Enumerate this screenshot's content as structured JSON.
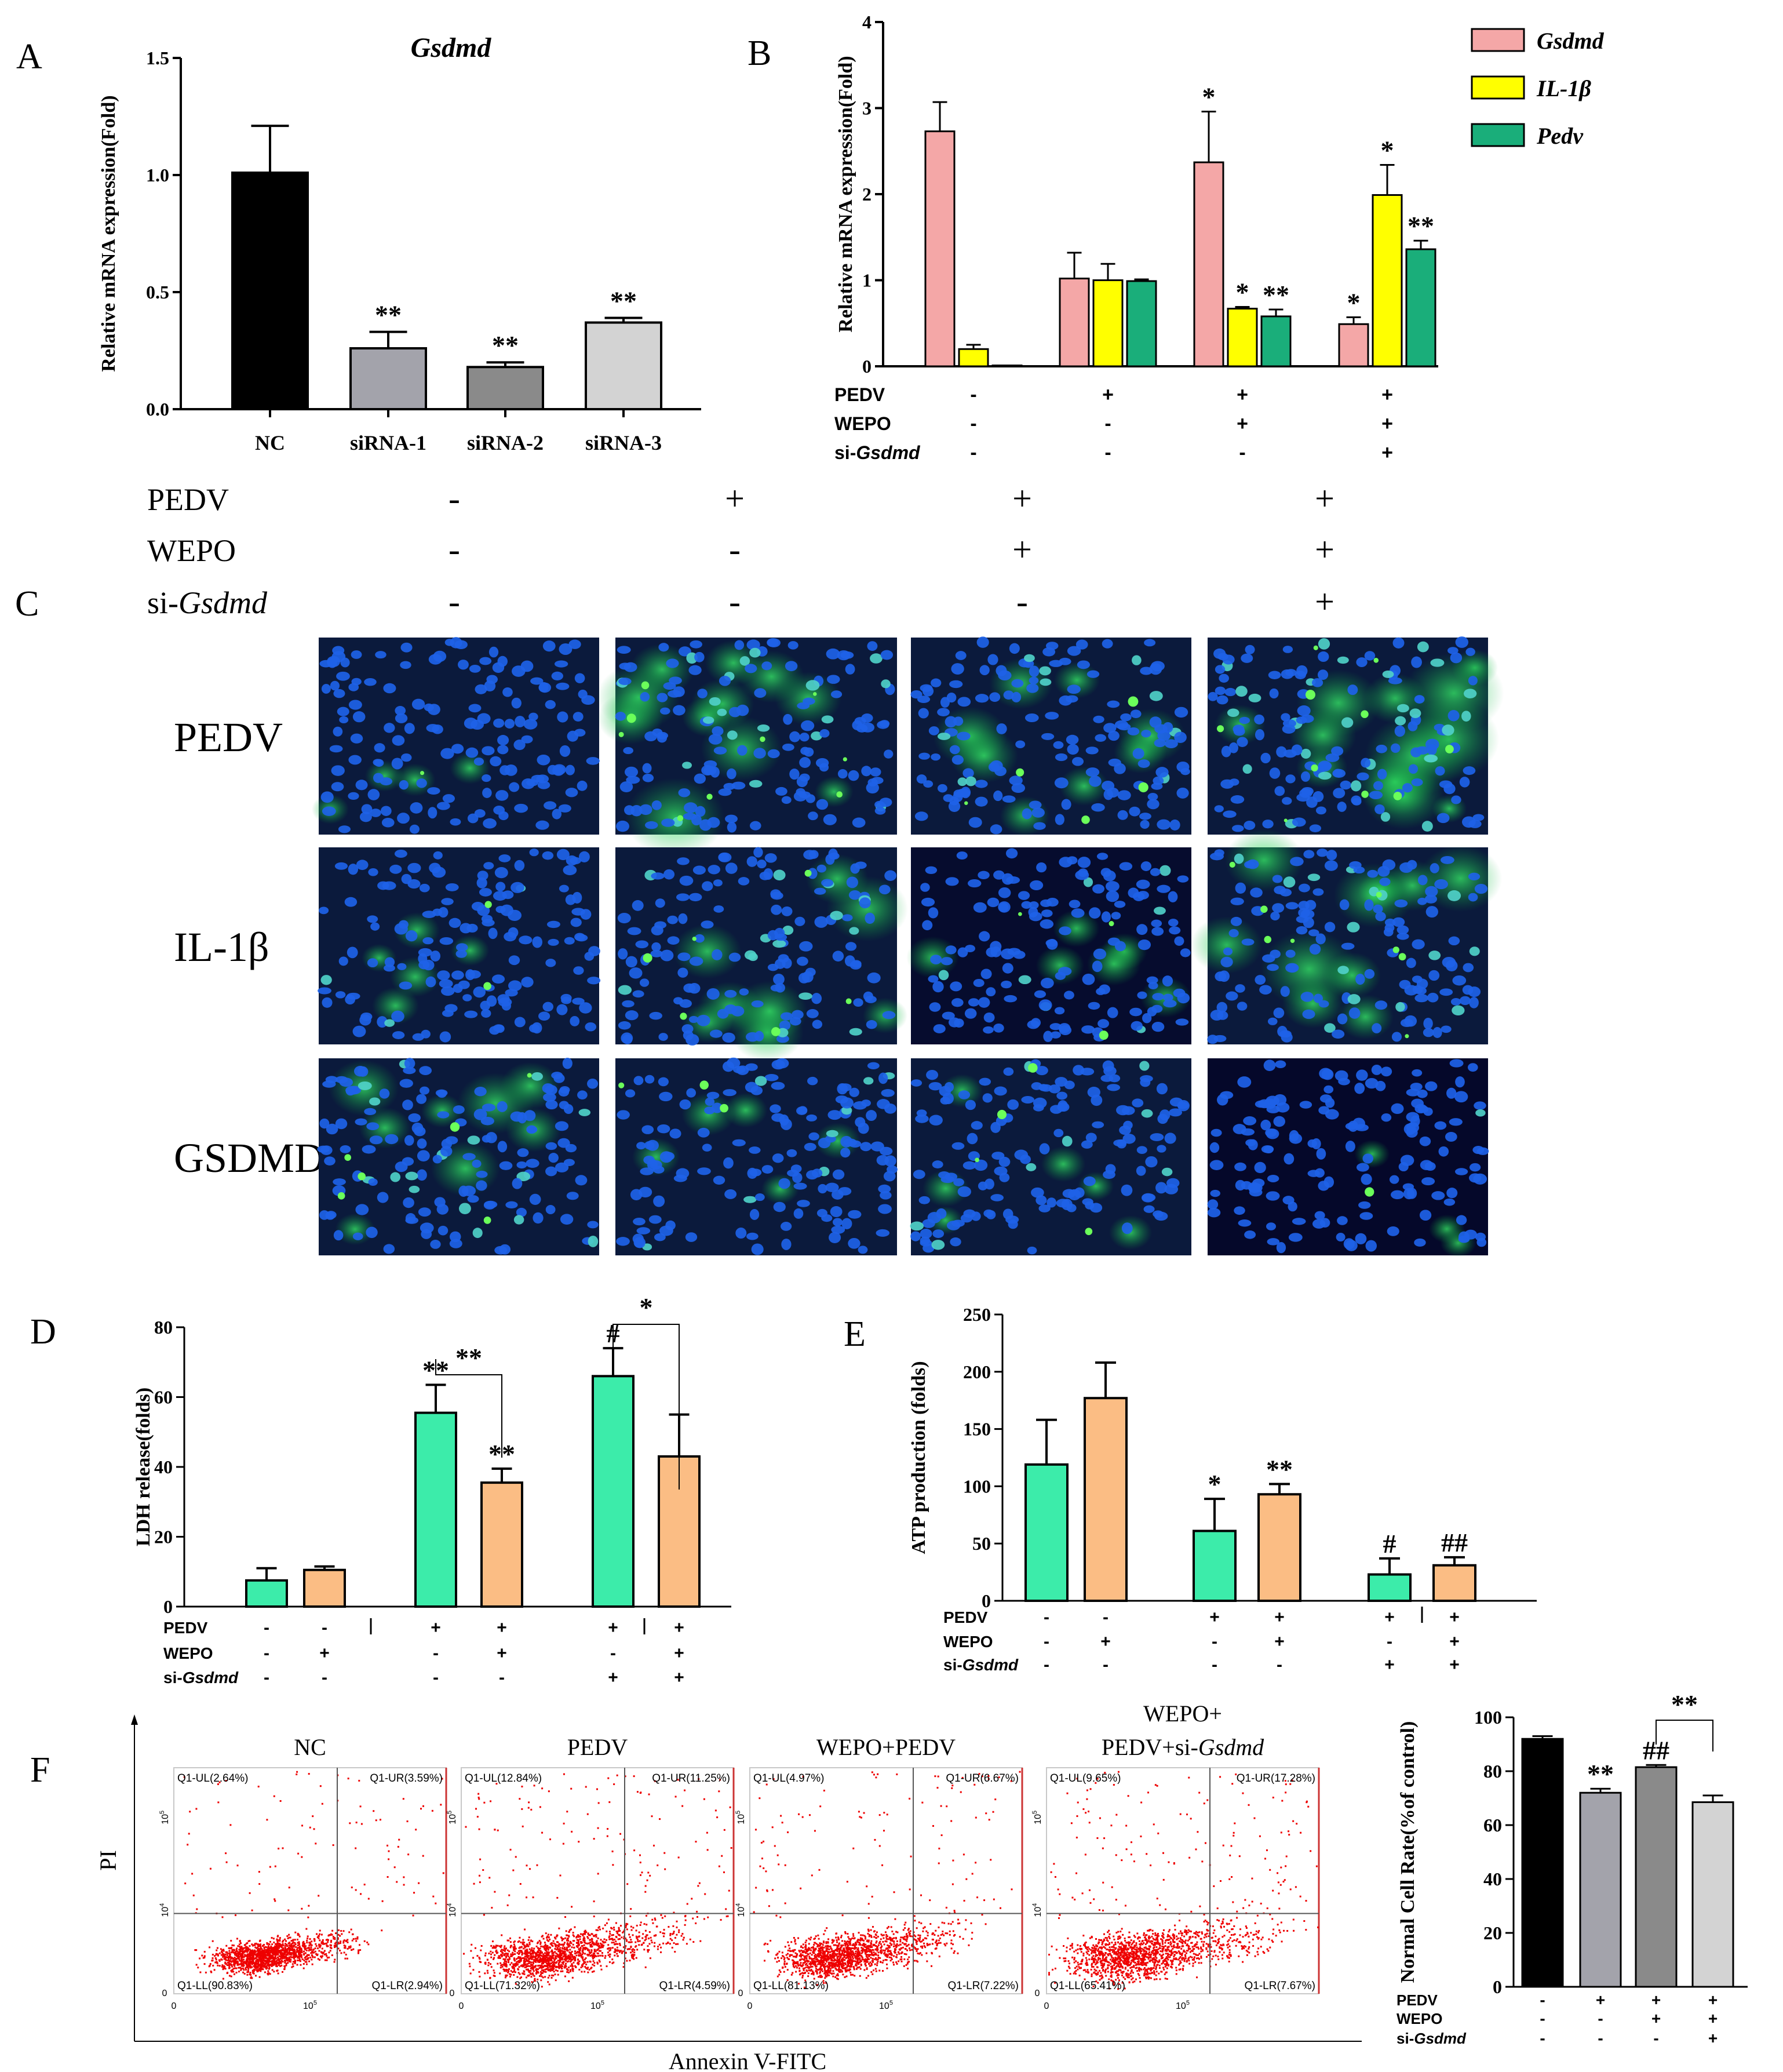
{
  "panels": {
    "A": "A",
    "B": "B",
    "C": "C",
    "D": "D",
    "E": "E",
    "F": "F"
  },
  "colors": {
    "gsdmd": "#f4a7a7",
    "il1b": "#ffff00",
    "pedv": "#1aae7a",
    "black": "#000000",
    "grey1": "#a3a3ab",
    "grey2": "#8a8a8a",
    "grey3": "#d3d3d3",
    "green_d": "#3cecaa",
    "orange_d": "#fbbd84",
    "red_dot": "#ee0000"
  },
  "chart_data": [
    {
      "id": "A",
      "type": "bar",
      "title": "Gsdmd",
      "ylabel": "Relative mRNA expression(Fold)",
      "xlabel": "",
      "ylim": [
        0,
        1.5
      ],
      "yticks": [
        "0.0",
        "0.5",
        "1.0",
        "1.5"
      ],
      "categories": [
        "NC",
        "siRNA-1",
        "siRNA-2",
        "siRNA-3"
      ],
      "values": [
        1.01,
        0.26,
        0.18,
        0.37
      ],
      "errors": [
        0.2,
        0.07,
        0.02,
        0.02
      ],
      "colors": [
        "black",
        "grey1",
        "grey2",
        "grey3"
      ],
      "significance": [
        "",
        "**",
        "**",
        "**"
      ]
    },
    {
      "id": "B",
      "type": "bar",
      "ylabel": "Relative mRNA expression(Fold)",
      "ylim": [
        0,
        4
      ],
      "yticks": [
        "0",
        "1",
        "2",
        "3",
        "4"
      ],
      "legend": [
        "Gsdmd",
        "IL-1β",
        "Pedv"
      ],
      "groups": 4,
      "series": [
        {
          "name": "Gsdmd",
          "values": [
            2.73,
            1.02,
            2.37,
            0.49
          ],
          "errors": [
            0.34,
            0.3,
            0.59,
            0.08
          ],
          "significance": [
            "",
            "",
            "*",
            "*"
          ]
        },
        {
          "name": "IL-1β",
          "values": [
            0.2,
            1.0,
            0.67,
            1.99
          ],
          "errors": [
            0.05,
            0.19,
            0.02,
            0.35
          ],
          "significance": [
            "",
            "",
            "*",
            "*"
          ]
        },
        {
          "name": "Pedv",
          "values": [
            0.01,
            0.99,
            0.58,
            1.36
          ],
          "errors": [
            0,
            0.02,
            0.08,
            0.1
          ],
          "significance": [
            "",
            "",
            "**",
            "**"
          ]
        }
      ],
      "conditions": {
        "labels": [
          "PEDV",
          "WEPO",
          "si-"
        ],
        "italic_suffix": "Gsdmd",
        "rows": [
          [
            "-",
            "+",
            "+",
            "+"
          ],
          [
            "-",
            "-",
            "+",
            "+"
          ],
          [
            "-",
            "-",
            "-",
            "+"
          ]
        ]
      }
    },
    {
      "id": "D",
      "type": "bar",
      "ylabel": "LDH release(folds)",
      "ylim": [
        0,
        80
      ],
      "yticks": [
        "0",
        "20",
        "40",
        "60",
        "80"
      ],
      "values": [
        7.5,
        10.5,
        55.5,
        35.5,
        66,
        43
      ],
      "errors": [
        3.5,
        1,
        8,
        4,
        8,
        12
      ],
      "colors": [
        "green_d",
        "orange_d",
        "green_d",
        "orange_d",
        "green_d",
        "orange_d"
      ],
      "significance": [
        "",
        "",
        "**",
        "**",
        "#",
        ""
      ],
      "brackets": [
        {
          "from": 2,
          "to": 3,
          "label": "**"
        },
        {
          "from": 4,
          "to": 5,
          "label": "*"
        }
      ],
      "conditions": {
        "labels": [
          "PEDV",
          "WEPO",
          "si-"
        ],
        "italic_suffix": "Gsdmd",
        "rows": [
          [
            "-",
            "-",
            "+",
            "+",
            "+",
            "+"
          ],
          [
            "-",
            "+",
            "-",
            "+",
            "-",
            "+"
          ],
          [
            "-",
            "-",
            "-",
            "-",
            "+",
            "+"
          ]
        ]
      }
    },
    {
      "id": "E",
      "type": "bar",
      "ylabel": "ATP production (folds)",
      "ylim": [
        0,
        250
      ],
      "yticks": [
        "0",
        "50",
        "100",
        "150",
        "200",
        "250"
      ],
      "values": [
        119,
        177,
        61,
        93,
        23,
        31
      ],
      "errors": [
        39,
        31,
        28,
        9,
        14,
        7
      ],
      "colors": [
        "green_d",
        "orange_d",
        "green_d",
        "orange_d",
        "green_d",
        "orange_d"
      ],
      "significance": [
        "",
        "",
        "*",
        "**",
        "#",
        "##"
      ],
      "conditions": {
        "labels": [
          "PEDV",
          "WEPO",
          "si-"
        ],
        "italic_suffix": "Gsdmd",
        "rows": [
          [
            "-",
            "-",
            "+",
            "+",
            "+",
            "+"
          ],
          [
            "-",
            "+",
            "-",
            "+",
            "-",
            "+"
          ],
          [
            "-",
            "-",
            "-",
            "-",
            "+",
            "+"
          ]
        ]
      }
    },
    {
      "id": "F2",
      "type": "bar",
      "ylabel": "Normal Cell Rate(%of control)",
      "ylim": [
        0,
        100
      ],
      "yticks": [
        "0",
        "20",
        "40",
        "60",
        "80",
        "100"
      ],
      "values": [
        92,
        72,
        81.5,
        68.5
      ],
      "errors": [
        1,
        1.5,
        0.8,
        2.5
      ],
      "colors": [
        "black",
        "grey1",
        "grey2",
        "grey3"
      ],
      "significance": [
        "",
        "**",
        "##",
        ""
      ],
      "brackets": [
        {
          "from": 2,
          "to": 3,
          "label": "**"
        }
      ],
      "conditions": {
        "labels": [
          "PEDV",
          "WEPO",
          "si-"
        ],
        "italic_suffix": "Gsdmd",
        "rows": [
          [
            "-",
            "+",
            "+",
            "+"
          ],
          [
            "-",
            "-",
            "+",
            "+"
          ],
          [
            "-",
            "-",
            "-",
            "+"
          ]
        ]
      }
    },
    {
      "id": "F1",
      "type": "scatter",
      "xlabel": "Annexin V-FITC",
      "ylabel": "PI",
      "plots": [
        {
          "title": "NC",
          "title_italic": "",
          "title_line1": "",
          "quadrants": {
            "UL": "Q1-UL(2.64%)",
            "UR": "Q1-UR(3.59%)",
            "LL": "Q1-LL(90.83%)",
            "LR": "Q1-LR(2.94%)"
          }
        },
        {
          "title": "PEDV",
          "title_italic": "",
          "title_line1": "",
          "quadrants": {
            "UL": "Q1-UL(12.84%)",
            "UR": "Q1-UR(11.25%)",
            "LL": "Q1-LL(71.32%)",
            "LR": "Q1-LR(4.59%)"
          }
        },
        {
          "title": "WEPO+PEDV",
          "title_italic": "",
          "title_line1": "",
          "quadrants": {
            "UL": "Q1-UL(4.97%)",
            "UR": "Q1-UR(6.67%)",
            "LL": "Q1-LL(81.13%)",
            "LR": "Q1-LR(7.22%)"
          }
        },
        {
          "title": "PEDV+si-",
          "title_italic": "Gsdmd",
          "title_line1": "WEPO+",
          "quadrants": {
            "UL": "Q1-UL(9.65%)",
            "UR": "Q1-UR(17.28%)",
            "LL": "Q1-LL(65.41%)",
            "LR": "Q1-LR(7.67%)"
          }
        }
      ],
      "ticks": {
        "x0": "0",
        "x5": "10",
        "x5sup": "5",
        "y4": "10",
        "y4sup": "4",
        "y5": "10",
        "y5sup": "5",
        "y0": "0"
      }
    }
  ],
  "panelC": {
    "header_rows": [
      {
        "label": "PEDV",
        "italic": "",
        "signs": [
          "-",
          "+",
          "+",
          "+"
        ]
      },
      {
        "label": "WEPO",
        "italic": "",
        "signs": [
          "-",
          "-",
          "+",
          "+"
        ]
      },
      {
        "label": "si-",
        "italic": "Gsdmd",
        "signs": [
          "-",
          "-",
          "-",
          "+"
        ]
      }
    ],
    "row_labels": [
      "PEDV",
      "IL-1β",
      "GSDMD"
    ]
  }
}
